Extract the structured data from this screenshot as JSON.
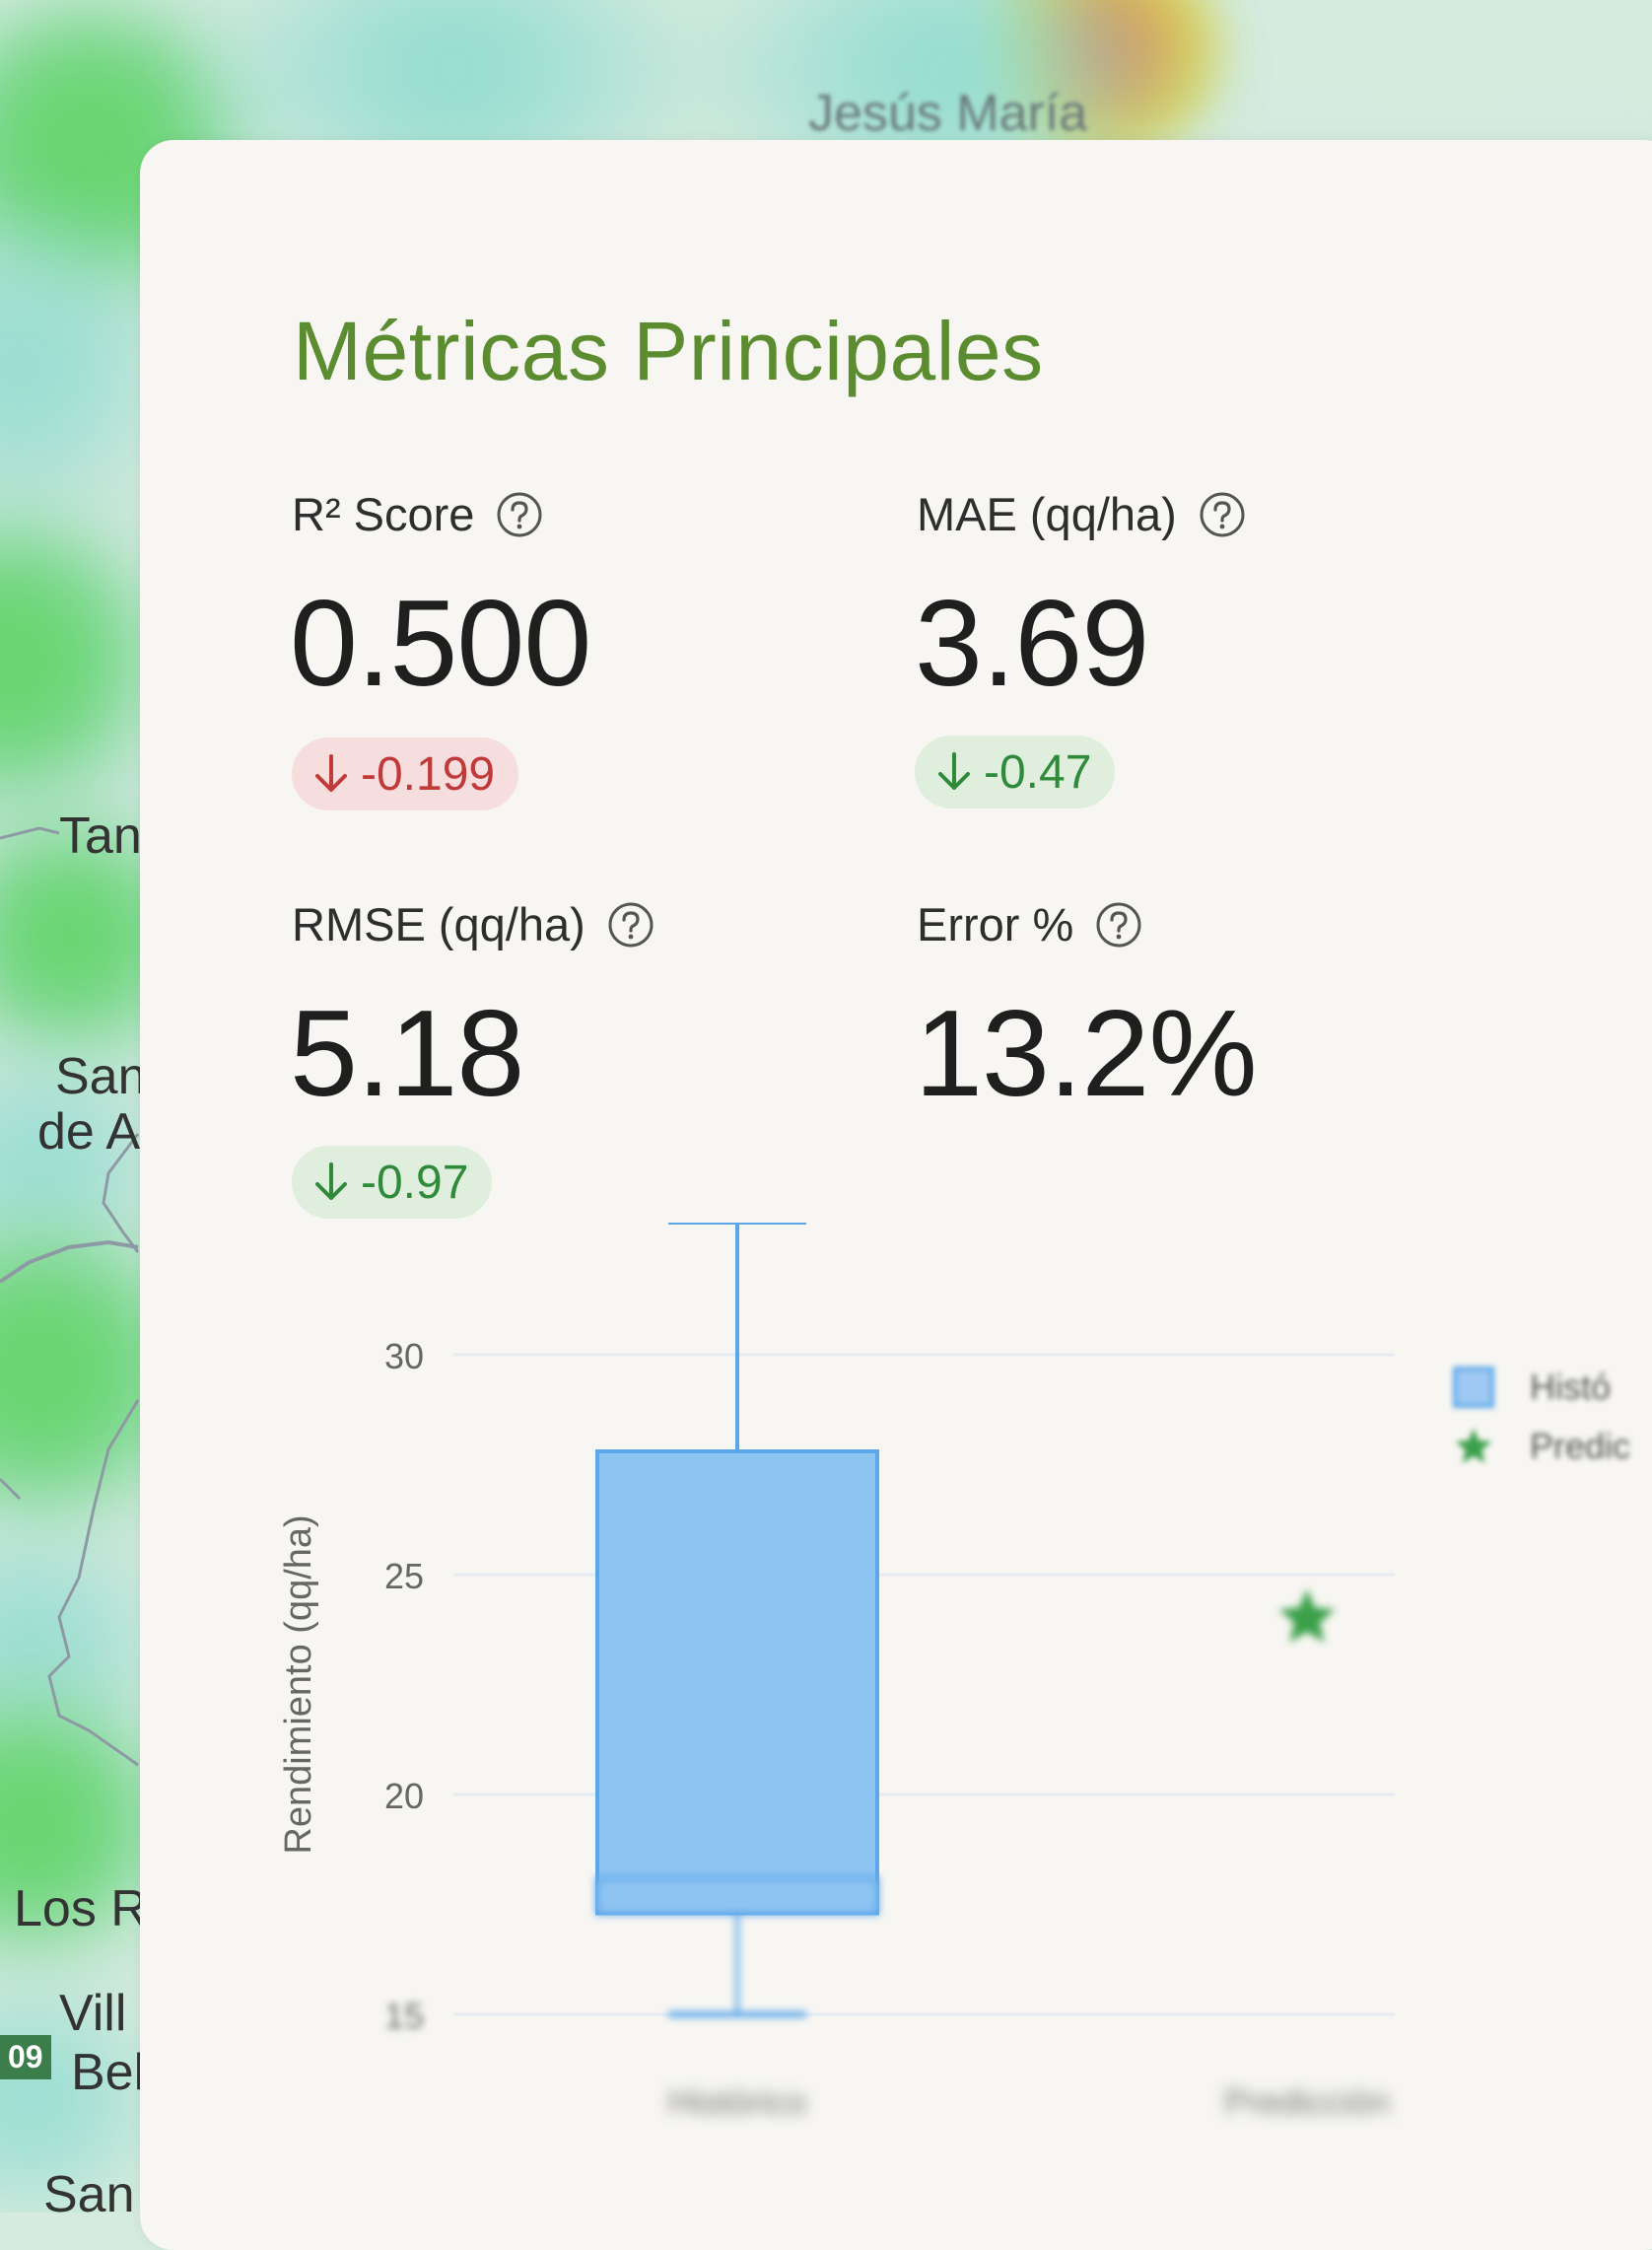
{
  "map": {
    "labels": [
      "Jesús María",
      "Tan",
      "San",
      "de A",
      "Los R",
      "Vill",
      "Bel",
      "San"
    ],
    "road_badge": "09",
    "colors": {
      "base": "#d4ebde",
      "heat_low": "#66d66a",
      "heat_high": "#e06b3c"
    }
  },
  "panel": {
    "title": "Métricas Principales",
    "metrics": [
      {
        "label": "R² Score",
        "value": "0.500",
        "delta": "-0.199",
        "trend": "down",
        "sentiment": "negative"
      },
      {
        "label": "MAE (qq/ha)",
        "value": "3.69",
        "delta": "-0.47",
        "trend": "down",
        "sentiment": "positive"
      },
      {
        "label": "RMSE (qq/ha)",
        "value": "5.18",
        "delta": "-0.97",
        "trend": "down",
        "sentiment": "positive"
      },
      {
        "label": "Error %",
        "value": "13.2%"
      }
    ],
    "icons": {
      "help": "help-circle-icon",
      "arrow": "arrow-down-icon"
    },
    "colors": {
      "title": "#5b8c30",
      "negative": "#c03a3a",
      "positive": "#2f8a3a"
    }
  },
  "chart_data": {
    "type": "box",
    "ylabel": "Rendimiento (qq/ha)",
    "yticks": [
      15,
      20,
      25,
      30
    ],
    "ylim": [
      13.5,
      33
    ],
    "categories": [
      "Histórico",
      "Predicción"
    ],
    "legend": [
      "Histó",
      "Predic"
    ],
    "legend_position": "top-right",
    "box": {
      "min": 15,
      "q1": 17.3,
      "median": 18,
      "q3": 27.8,
      "max": 33,
      "color": "#5aa7ea",
      "fill": "#8ec4f2"
    },
    "prediction": {
      "value": 24.0,
      "marker": "star",
      "color": "#3aa04a"
    },
    "grid": true
  }
}
